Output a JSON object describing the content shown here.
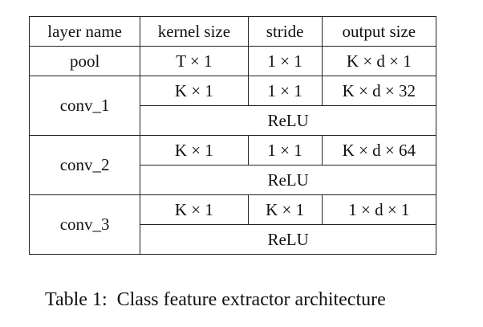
{
  "table": {
    "headers": [
      "layer name",
      "kernel size",
      "stride",
      "output size"
    ],
    "rows": [
      {
        "name": "pool",
        "kernel": "T × 1",
        "stride": "1 × 1",
        "output": "K × d × 1"
      },
      {
        "name": "conv_1",
        "kernel": "K × 1",
        "stride": "1 × 1",
        "output": "K × d × 32",
        "activation": "ReLU"
      },
      {
        "name": "conv_2",
        "kernel": "K × 1",
        "stride": "1 × 1",
        "output": "K × d × 64",
        "activation": "ReLU"
      },
      {
        "name": "conv_3",
        "kernel": "K × 1",
        "stride": "K × 1",
        "output": "1 × d × 1",
        "activation": "ReLU"
      }
    ]
  },
  "caption": {
    "label": "Table 1:",
    "text": "Class feature extractor architecture"
  }
}
